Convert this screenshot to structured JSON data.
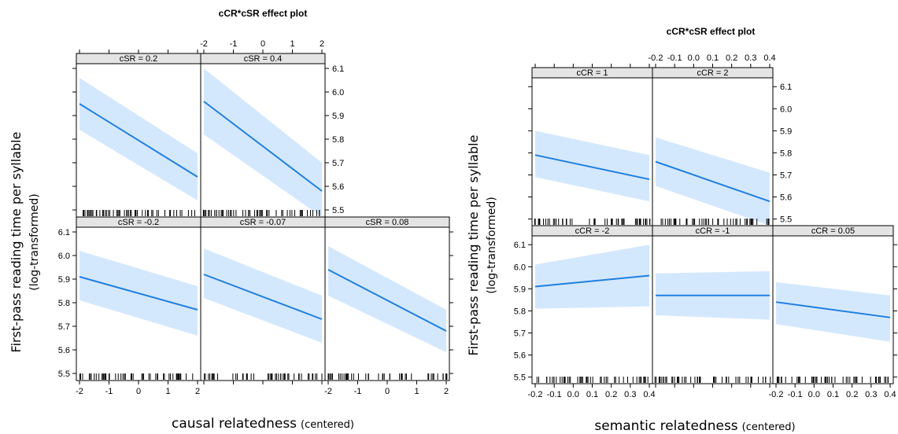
{
  "chart_data": [
    {
      "type": "line",
      "title": "cCR*cSR effect plot",
      "ylabel": "First-pass reading time per syllable",
      "ylabel_sub": "(log-transformed)",
      "xlabel": "causal relatedness",
      "xlabel_sub": "(centered)",
      "xlim": [
        -2,
        2
      ],
      "ylim": [
        5.47,
        6.12
      ],
      "xticks": [
        -2,
        -1,
        0,
        1,
        2
      ],
      "yticks": [
        5.5,
        5.6,
        5.7,
        5.8,
        5.9,
        6.0,
        6.1
      ],
      "line_color": "#1f7fe0",
      "band_color": "#d4e8fd",
      "panels": [
        {
          "strip": "cSR = 0.2",
          "row": 0,
          "col": 0,
          "x": [
            -2,
            2
          ],
          "fit": [
            5.95,
            5.64
          ],
          "lower": [
            5.84,
            5.54
          ],
          "upper": [
            6.06,
            5.74
          ]
        },
        {
          "strip": "cSR = 0.4",
          "row": 0,
          "col": 1,
          "x": [
            -2,
            2
          ],
          "fit": [
            5.96,
            5.58
          ],
          "lower": [
            5.82,
            5.47
          ],
          "upper": [
            6.1,
            5.7
          ]
        },
        {
          "strip": "cSR = -0.2",
          "row": 1,
          "col": 0,
          "x": [
            -2,
            2
          ],
          "fit": [
            5.91,
            5.77
          ],
          "lower": [
            5.81,
            5.66
          ],
          "upper": [
            6.02,
            5.87
          ]
        },
        {
          "strip": "cSR = -0.07",
          "row": 1,
          "col": 1,
          "x": [
            -2,
            2
          ],
          "fit": [
            5.92,
            5.73
          ],
          "lower": [
            5.82,
            5.63
          ],
          "upper": [
            6.03,
            5.83
          ]
        },
        {
          "strip": "cSR = 0.08",
          "row": 1,
          "col": 2,
          "x": [
            -2,
            2
          ],
          "fit": [
            5.94,
            5.68
          ],
          "lower": [
            5.83,
            5.59
          ],
          "upper": [
            6.04,
            5.77
          ]
        }
      ]
    },
    {
      "type": "line",
      "title": "cCR*cSR effect plot",
      "ylabel": "First-pass reading time per syllable",
      "ylabel_sub": "(log-transformed)",
      "xlabel": "semantic relatedness",
      "xlabel_sub": "(centered)",
      "xlim": [
        -0.2,
        0.4
      ],
      "ylim": [
        5.47,
        6.14
      ],
      "xticks": [
        "-0.2",
        "-0.1",
        "0.0",
        "0.1",
        "0.2",
        "0.3",
        "0.4"
      ],
      "yticks": [
        5.5,
        5.6,
        5.7,
        5.8,
        5.9,
        6.0,
        6.1
      ],
      "line_color": "#1f7fe0",
      "band_color": "#d4e8fd",
      "panels": [
        {
          "strip": "cCR = 1",
          "row": 0,
          "col": 0,
          "x": [
            -0.2,
            0.4
          ],
          "fit": [
            5.79,
            5.68
          ],
          "lower": [
            5.69,
            5.58
          ],
          "upper": [
            5.9,
            5.79
          ]
        },
        {
          "strip": "cCR = 2",
          "row": 0,
          "col": 1,
          "x": [
            -0.2,
            0.4
          ],
          "fit": [
            5.76,
            5.58
          ],
          "lower": [
            5.65,
            5.47
          ],
          "upper": [
            5.87,
            5.71
          ]
        },
        {
          "strip": "cCR = -2",
          "row": 1,
          "col": 0,
          "x": [
            -0.2,
            0.4
          ],
          "fit": [
            5.91,
            5.96
          ],
          "lower": [
            5.81,
            5.82
          ],
          "upper": [
            6.01,
            6.1
          ]
        },
        {
          "strip": "cCR = -1",
          "row": 1,
          "col": 1,
          "x": [
            -0.2,
            0.4
          ],
          "fit": [
            5.87,
            5.87
          ],
          "lower": [
            5.78,
            5.76
          ],
          "upper": [
            5.97,
            5.98
          ]
        },
        {
          "strip": "cCR = 0.05",
          "row": 1,
          "col": 2,
          "x": [
            -0.2,
            0.4
          ],
          "fit": [
            5.84,
            5.77
          ],
          "lower": [
            5.74,
            5.66
          ],
          "upper": [
            5.93,
            5.87
          ]
        }
      ]
    }
  ]
}
